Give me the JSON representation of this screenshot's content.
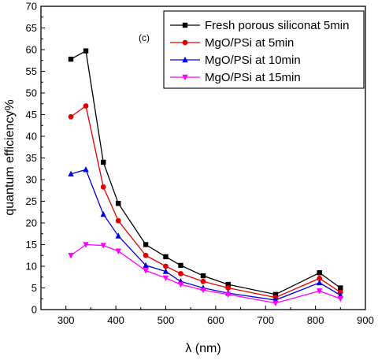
{
  "chart_data": {
    "type": "line",
    "annotation": "(c)",
    "xlabel": "λ (nm)",
    "ylabel": "quantum efficiency%",
    "xlim": [
      250,
      900
    ],
    "ylim": [
      0,
      70
    ],
    "xticks": [
      300,
      400,
      500,
      600,
      700,
      800,
      900
    ],
    "yticks": [
      0,
      5,
      10,
      15,
      20,
      25,
      30,
      35,
      40,
      45,
      50,
      55,
      60,
      65,
      70
    ],
    "grid": false,
    "legend_position": "top-right",
    "series": [
      {
        "name": "Fresh porous siliconat 5min",
        "color": "#000000",
        "marker": "square",
        "x": [
          310,
          340,
          375,
          405,
          460,
          500,
          530,
          575,
          625,
          720,
          808,
          850
        ],
        "y": [
          57.8,
          59.7,
          34.0,
          24.5,
          15.0,
          12.2,
          10.2,
          7.8,
          5.8,
          3.5,
          8.5,
          5.0
        ]
      },
      {
        "name": "MgO/PSi at 5min",
        "color": "#e00000",
        "marker": "circle",
        "x": [
          310,
          340,
          375,
          405,
          460,
          500,
          530,
          575,
          625,
          720,
          808,
          850
        ],
        "y": [
          44.5,
          47.0,
          28.3,
          20.5,
          12.5,
          10.0,
          8.3,
          6.5,
          5.0,
          2.8,
          7.2,
          4.0
        ]
      },
      {
        "name": "MgO/PSi at 10min",
        "color": "#0000e0",
        "marker": "triangle-up",
        "x": [
          310,
          340,
          375,
          405,
          460,
          500,
          530,
          575,
          625,
          720,
          808,
          850
        ],
        "y": [
          31.3,
          32.3,
          22.0,
          17.0,
          10.2,
          8.8,
          6.5,
          5.0,
          3.8,
          2.2,
          6.2,
          3.3
        ]
      },
      {
        "name": "MgO/PSi at 15min",
        "color": "#ff00ff",
        "marker": "triangle-down",
        "x": [
          310,
          340,
          375,
          405,
          460,
          500,
          530,
          575,
          625,
          720,
          808,
          850
        ],
        "y": [
          12.5,
          15.0,
          14.8,
          13.5,
          9.0,
          7.3,
          5.8,
          4.5,
          3.5,
          1.5,
          4.3,
          2.5
        ]
      }
    ]
  }
}
